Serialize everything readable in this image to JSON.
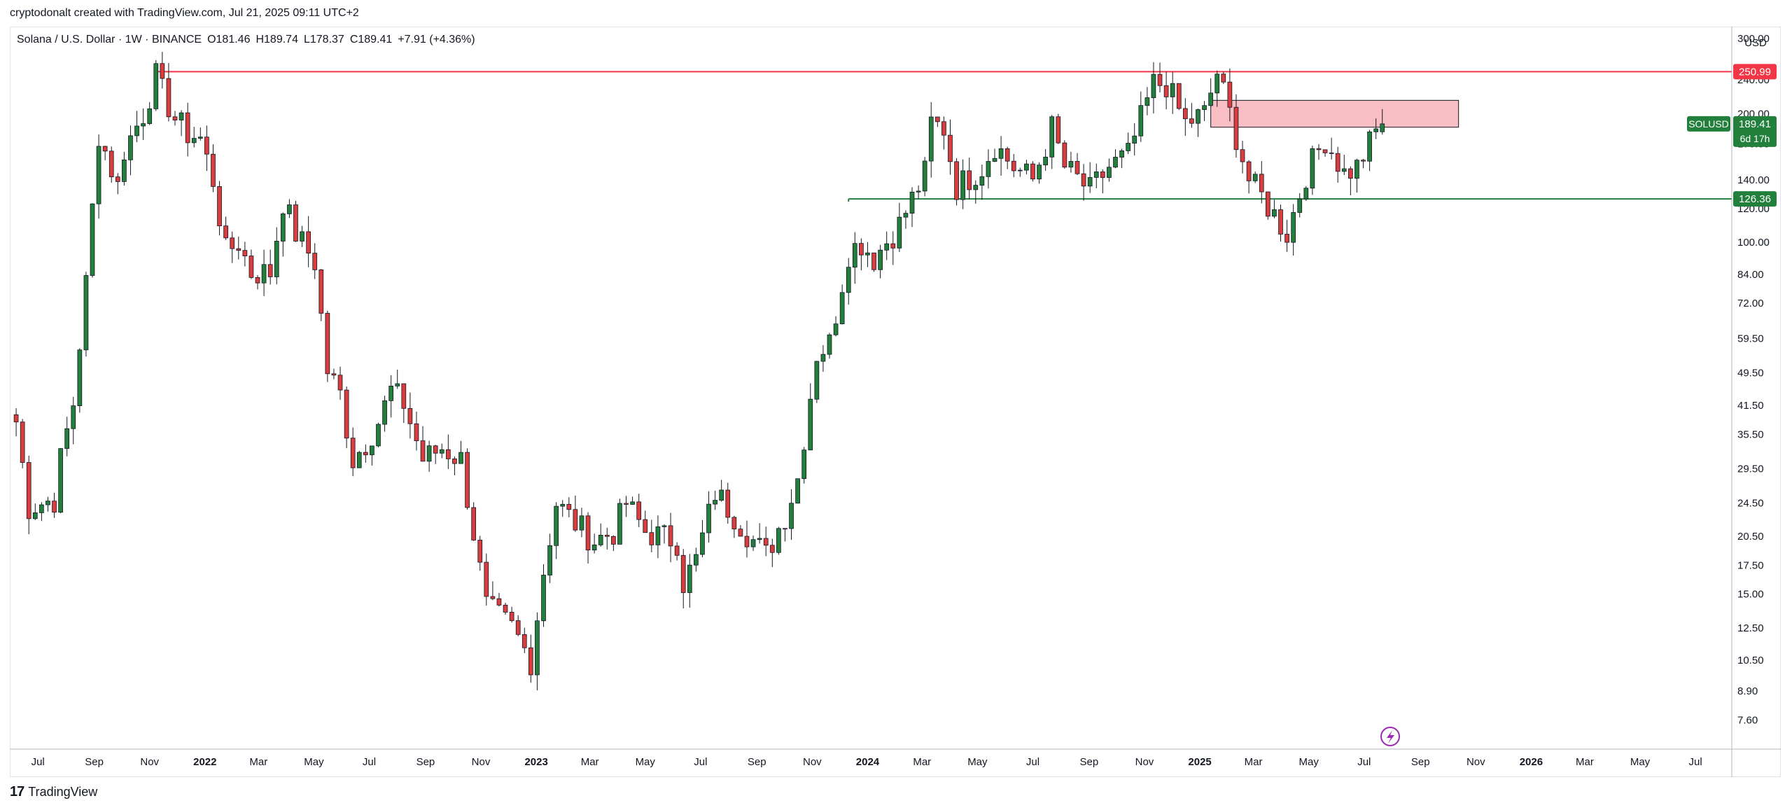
{
  "attribution": "cryptodonalt created with TradingView.com, Jul 21, 2025 09:11 UTC+2",
  "legend": {
    "symbol": "Solana / U.S. Dollar · 1W · BINANCE",
    "open": "O181.46",
    "high": "H189.74",
    "low": "L178.37",
    "close": "C189.41",
    "change": "+7.91 (+4.36%)"
  },
  "footer": {
    "brand": "TradingView"
  },
  "chart_data": {
    "type": "candlestick",
    "symbol": "SOLUSD",
    "timeframe": "1W",
    "exchange": "BINANCE",
    "currency": "USD",
    "y_scale": "log",
    "ylim": [
      6.5,
      320
    ],
    "y_ticks": [
      "300.00",
      "240.00",
      "200.00",
      "170.00",
      "140.00",
      "120.00",
      "100.00",
      "84.00",
      "72.00",
      "59.50",
      "49.50",
      "41.50",
      "35.50",
      "29.50",
      "24.50",
      "20.50",
      "17.50",
      "15.00",
      "12.50",
      "10.50",
      "8.90",
      "7.60"
    ],
    "x_ticks": [
      "Jul",
      "Sep",
      "Nov",
      "2022",
      "Mar",
      "May",
      "Jul",
      "Sep",
      "Nov",
      "2023",
      "Mar",
      "May",
      "Jul",
      "Sep",
      "Nov",
      "2024",
      "Mar",
      "May",
      "Jul",
      "Sep",
      "Nov",
      "2025",
      "Mar",
      "May",
      "Jul",
      "Sep",
      "Nov",
      "2026",
      "Mar",
      "May",
      "Jul"
    ],
    "current_price": {
      "symbol_label": "SOLUSD",
      "value": "189.41",
      "countdown": "6d 17h",
      "color": "#22803c"
    },
    "levels": [
      {
        "value": 250.99,
        "label": "250.99",
        "color": "#f23645",
        "from_date": "2021-11-08"
      },
      {
        "value": 126.36,
        "label": "126.36",
        "color": "#22803c",
        "from_date": "2023-12-11"
      }
    ],
    "zone": {
      "from_date": "2025-01-13",
      "to_date": "2025-10-13",
      "top": 215,
      "bottom": 186,
      "color": "#f7a8b0"
    },
    "colors": {
      "up": "#22803c",
      "down": "#d93d3d",
      "wick": "#131722"
    },
    "keypoints": [
      [
        "2021-06-07",
        38
      ],
      [
        "2021-06-21",
        24
      ],
      [
        "2021-07-19",
        25
      ],
      [
        "2021-07-26",
        31
      ],
      [
        "2021-08-09",
        42
      ],
      [
        "2021-08-23",
        80
      ],
      [
        "2021-09-06",
        180
      ],
      [
        "2021-09-27",
        135
      ],
      [
        "2021-10-04",
        165
      ],
      [
        "2021-10-25",
        200
      ],
      [
        "2021-11-08",
        245
      ],
      [
        "2021-11-15",
        225
      ],
      [
        "2021-11-29",
        195
      ],
      [
        "2021-12-13",
        180
      ],
      [
        "2021-12-27",
        175
      ],
      [
        "2022-01-10",
        140
      ],
      [
        "2022-01-24",
        95
      ],
      [
        "2022-02-07",
        100
      ],
      [
        "2022-02-21",
        85
      ],
      [
        "2022-03-14",
        85
      ],
      [
        "2022-03-28",
        125
      ],
      [
        "2022-04-11",
        105
      ],
      [
        "2022-05-02",
        90
      ],
      [
        "2022-05-16",
        50
      ],
      [
        "2022-05-30",
        44
      ],
      [
        "2022-06-13",
        31
      ],
      [
        "2022-06-27",
        34
      ],
      [
        "2022-07-11",
        38
      ],
      [
        "2022-07-25",
        45
      ],
      [
        "2022-08-08",
        42
      ],
      [
        "2022-08-29",
        31
      ],
      [
        "2022-09-19",
        33
      ],
      [
        "2022-10-10",
        31
      ],
      [
        "2022-11-07",
        14
      ],
      [
        "2022-12-05",
        12.5
      ],
      [
        "2022-12-26",
        10.5
      ],
      [
        "2023-01-09",
        17
      ],
      [
        "2023-01-23",
        24.5
      ],
      [
        "2023-02-13",
        22
      ],
      [
        "2023-03-06",
        20
      ],
      [
        "2023-03-27",
        21
      ],
      [
        "2023-04-10",
        24.5
      ],
      [
        "2023-05-01",
        21
      ],
      [
        "2023-06-05",
        20
      ],
      [
        "2023-06-12",
        16
      ],
      [
        "2023-06-26",
        18
      ],
      [
        "2023-07-17",
        26
      ],
      [
        "2023-08-07",
        23
      ],
      [
        "2023-08-28",
        20
      ],
      [
        "2023-09-11",
        18.5
      ],
      [
        "2023-10-02",
        23
      ],
      [
        "2023-10-16",
        28
      ],
      [
        "2023-11-06",
        55
      ],
      [
        "2023-11-20",
        58
      ],
      [
        "2023-12-11",
        95
      ],
      [
        "2023-12-25",
        100
      ],
      [
        "2024-01-08",
        92
      ],
      [
        "2024-02-05",
        110
      ],
      [
        "2024-03-04",
        145
      ],
      [
        "2024-03-11",
        190
      ],
      [
        "2024-03-25",
        185
      ],
      [
        "2024-04-08",
        135
      ],
      [
        "2024-05-06",
        150
      ],
      [
        "2024-05-20",
        170
      ],
      [
        "2024-06-10",
        150
      ],
      [
        "2024-07-01",
        140
      ],
      [
        "2024-07-22",
        185
      ],
      [
        "2024-08-05",
        150
      ],
      [
        "2024-09-02",
        132
      ],
      [
        "2024-09-23",
        150
      ],
      [
        "2024-10-14",
        160
      ],
      [
        "2024-11-11",
        235
      ],
      [
        "2024-11-25",
        235
      ],
      [
        "2024-12-16",
        190
      ],
      [
        "2025-01-06",
        200
      ],
      [
        "2025-01-20",
        250
      ],
      [
        "2025-02-03",
        200
      ],
      [
        "2025-02-24",
        140
      ],
      [
        "2025-03-10",
        128
      ],
      [
        "2025-04-07",
        105
      ],
      [
        "2025-04-28",
        145
      ],
      [
        "2025-05-19",
        175
      ],
      [
        "2025-06-09",
        145
      ],
      [
        "2025-06-23",
        150
      ],
      [
        "2025-07-14",
        181.5
      ],
      [
        "2025-07-21",
        189.41
      ]
    ]
  }
}
